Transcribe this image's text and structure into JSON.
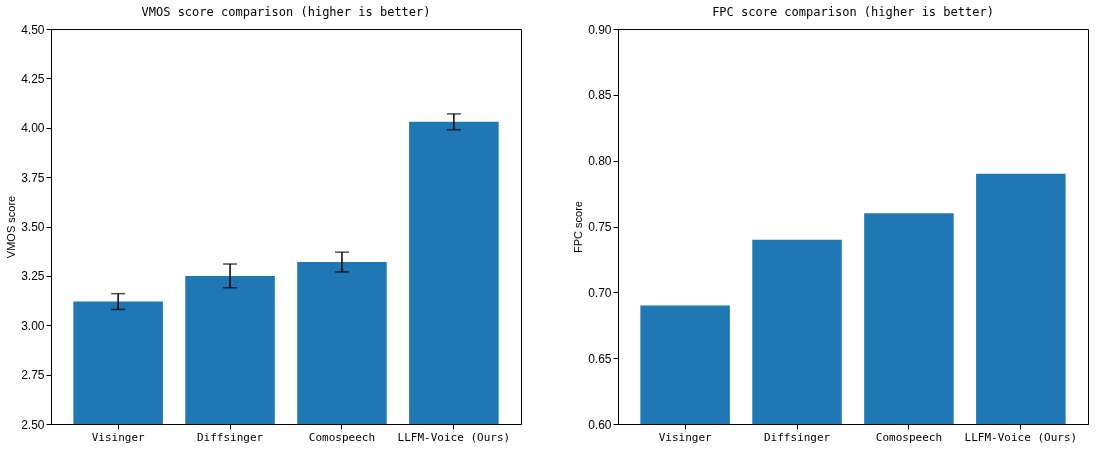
{
  "chart_data": [
    {
      "type": "bar",
      "title": "VMOS score comparison (higher is better)",
      "ylabel": "VMOS score",
      "categories": [
        "Visinger",
        "Diffsinger",
        "Comospeech",
        "LLFM-Voice (Ours)"
      ],
      "values": [
        3.12,
        3.25,
        3.32,
        4.03
      ],
      "errors": [
        0.04,
        0.06,
        0.05,
        0.04
      ],
      "color": "#1f77b4",
      "ylim": [
        2.5,
        4.5
      ],
      "yticks": [
        {
          "value": 2.5,
          "label": "2.50"
        },
        2.75,
        {
          "value": 3.0,
          "label": "3.00"
        },
        3.25,
        {
          "value": 3.5,
          "label": "3.50"
        },
        3.75,
        {
          "value": 4.0,
          "label": "4.00"
        },
        4.25,
        {
          "value": 4.5,
          "label": "4.50"
        }
      ],
      "grid": false
    },
    {
      "type": "bar",
      "title": "FPC score comparison (higher is better)",
      "ylabel": "FPC score",
      "categories": [
        "Visinger",
        "Diffsinger",
        "Comospeech",
        "LLFM-Voice (Ours)"
      ],
      "values": [
        0.69,
        0.74,
        0.76,
        0.79
      ],
      "color": "#1f77b4",
      "ylim": [
        0.6,
        0.9
      ],
      "yticks": [
        {
          "value": 0.6,
          "label": "0.60"
        },
        0.65,
        {
          "value": 0.7,
          "label": "0.70"
        },
        0.75,
        {
          "value": 0.8,
          "label": "0.80"
        },
        0.85,
        {
          "value": 0.9,
          "label": "0.90"
        }
      ],
      "grid": false
    }
  ]
}
